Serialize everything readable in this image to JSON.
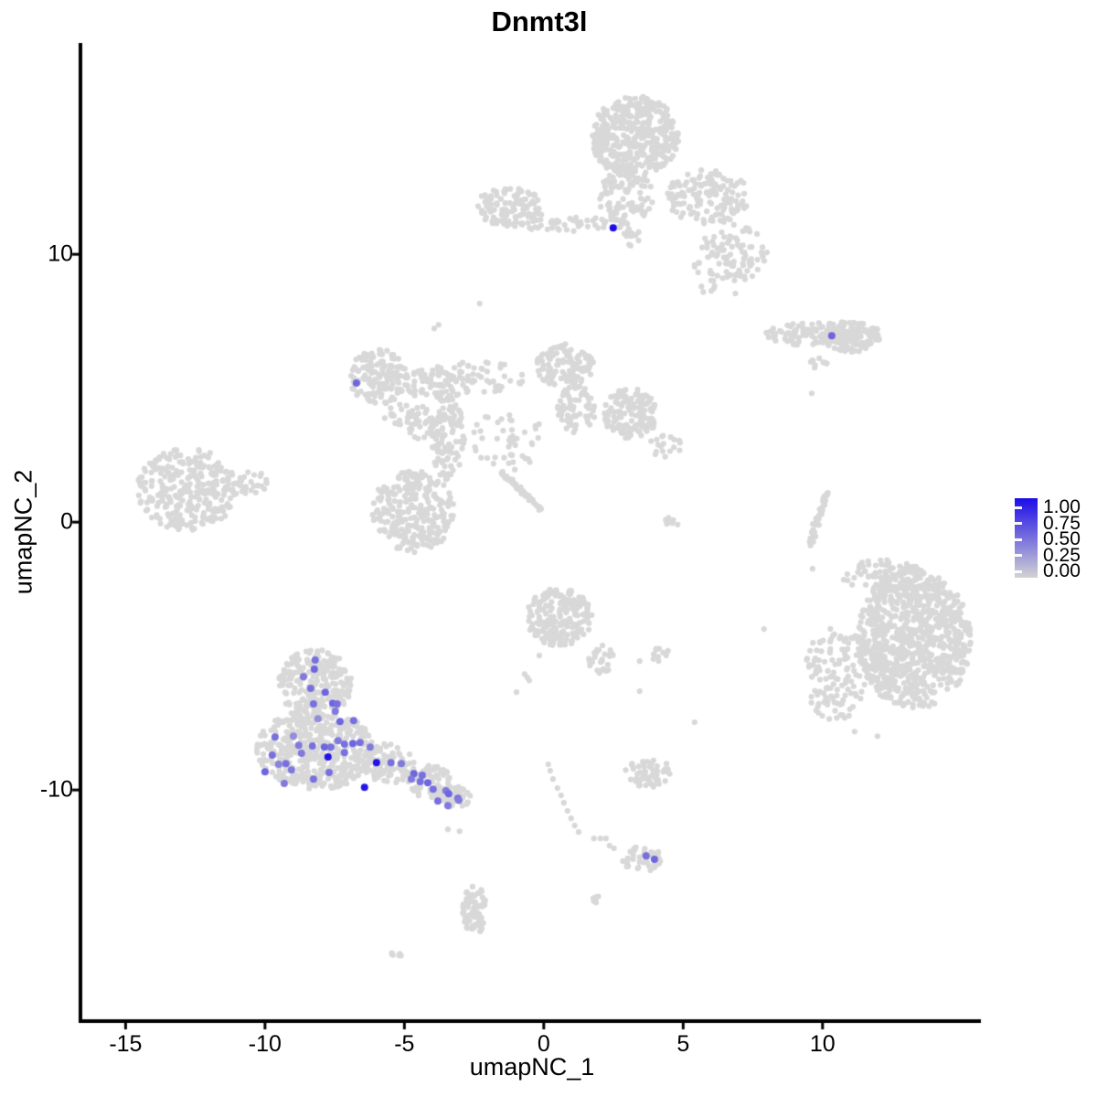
{
  "chart_data": {
    "type": "scatter",
    "title": "Dnmt3l",
    "xlabel": "umapNC_1",
    "ylabel": "umapNC_2",
    "xlim": [
      -16.62,
      15.68
    ],
    "ylim": [
      -18.63,
      17.89
    ],
    "x_ticks": [
      -15,
      -10,
      -5,
      0,
      5,
      10
    ],
    "x_tick_labels": [
      "-15",
      "-10",
      "-5",
      "0",
      "5",
      "10"
    ],
    "y_ticks": [
      10,
      0,
      -10
    ],
    "y_tick_labels": [
      "10",
      "0",
      "-10"
    ],
    "grid": false,
    "legend": {
      "position": "right",
      "breaks": [
        1.0,
        0.75,
        0.5,
        0.25,
        0.0
      ],
      "labels": [
        "1.00",
        "0.75",
        "0.50",
        "0.25",
        "0.00"
      ]
    },
    "colors": {
      "low": "#d3d3d3",
      "high": "#1c0ce8",
      "background_point": "#d8d8d8",
      "axis": "#000000"
    },
    "point_radius": {
      "background": 3.1,
      "expressing": 4.0
    },
    "clusters_format": [
      "center_x",
      "center_y",
      "radius_x",
      "radius_y",
      "n_points"
    ],
    "clusters": [
      [
        3.28,
        14.37,
        1.57,
        1.54,
        420
      ],
      [
        2.95,
        12.15,
        0.98,
        1.02,
        90
      ],
      [
        5.9,
        12.15,
        1.48,
        1.02,
        150
      ],
      [
        6.72,
        10.1,
        1.31,
        1.02,
        70
      ],
      [
        0.98,
        11.13,
        2.13,
        0.27,
        55
      ],
      [
        -1.25,
        11.74,
        1.25,
        0.75,
        110
      ],
      [
        3.11,
        10.55,
        0.49,
        0.41,
        12
      ],
      [
        6.39,
        9.25,
        1.15,
        0.85,
        35
      ],
      [
        9.67,
        7.03,
        1.7,
        0.44,
        110
      ],
      [
        11.05,
        6.93,
        1.05,
        0.58,
        110
      ],
      [
        9.84,
        5.84,
        0.39,
        0.31,
        10
      ],
      [
        -5.9,
        5.43,
        1.08,
        1.02,
        150
      ],
      [
        -3.77,
        5.15,
        1.31,
        0.61,
        70
      ],
      [
        -4.92,
        3.96,
        0.82,
        0.51,
        25
      ],
      [
        0.75,
        5.84,
        1.05,
        0.82,
        120
      ],
      [
        1.15,
        4.2,
        0.72,
        0.89,
        70
      ],
      [
        3.11,
        4.06,
        0.98,
        0.96,
        150
      ],
      [
        4.36,
        2.83,
        0.59,
        0.41,
        18
      ],
      [
        -3.44,
        3.11,
        0.59,
        1.54,
        110
      ],
      [
        -4.69,
        0.38,
        1.48,
        1.54,
        270
      ],
      [
        -1.31,
        3.11,
        1.31,
        1.19,
        45
      ],
      [
        -2.46,
        5.43,
        1.8,
        0.61,
        55
      ],
      [
        -4.43,
        3.72,
        0.49,
        0.75,
        25
      ],
      [
        4.49,
        -0.03,
        0.39,
        0.27,
        8
      ],
      [
        -12.79,
        1.23,
        1.8,
        1.54,
        300
      ],
      [
        -10.49,
        1.47,
        0.66,
        0.41,
        25
      ],
      [
        0.56,
        -3.55,
        1.18,
        1.09,
        200
      ],
      [
        2.07,
        -5.15,
        0.46,
        0.55,
        30
      ],
      [
        4.2,
        -4.95,
        0.39,
        0.27,
        10
      ],
      [
        13.28,
        -4.4,
        2.03,
        2.63,
        850
      ],
      [
        10.52,
        -5.67,
        1.18,
        1.77,
        130
      ],
      [
        12.13,
        -2.01,
        1.48,
        0.61,
        80
      ],
      [
        -8.2,
        -6.04,
        1.31,
        1.3,
        230
      ],
      [
        -8.2,
        -8.5,
        2.1,
        1.5,
        430
      ],
      [
        -5.57,
        -9.01,
        0.98,
        0.75,
        90
      ],
      [
        -4.1,
        -9.69,
        0.82,
        0.61,
        80
      ],
      [
        -3.18,
        -10.27,
        0.59,
        0.41,
        50
      ],
      [
        3.77,
        -9.35,
        0.85,
        0.55,
        60
      ],
      [
        3.54,
        -12.59,
        0.75,
        0.48,
        45
      ],
      [
        -2.49,
        -14.47,
        0.43,
        0.92,
        70
      ],
      [
        1.84,
        -13.96,
        0.2,
        0.27,
        7
      ],
      [
        -5.31,
        -16.14,
        0.23,
        0.17,
        6
      ]
    ],
    "streaks_format": [
      "x1",
      "y1",
      "x2",
      "y2",
      "n_points",
      "width_px"
    ],
    "streaks": [
      [
        -1.54,
        1.91,
        -0.1,
        0.48,
        45,
        4
      ],
      [
        10.16,
        1.13,
        9.54,
        -0.82,
        40,
        6
      ]
    ],
    "singles": [
      [
        9.61,
        4.81
      ],
      [
        9.64,
        -1.74
      ],
      [
        7.9,
        -3.99
      ],
      [
        5.41,
        -7.47
      ],
      [
        3.44,
        -5.19
      ],
      [
        -0.16,
        -4.98
      ],
      [
        -0.98,
        -6.35
      ],
      [
        -0.69,
        -5.67
      ],
      [
        -0.59,
        -5.8
      ],
      [
        -0.52,
        -5.91
      ],
      [
        -3.44,
        -11.47
      ],
      [
        -3.02,
        -11.54
      ],
      [
        0.23,
        -9.28
      ],
      [
        0.33,
        -9.59
      ],
      [
        0.49,
        -9.93
      ],
      [
        0.62,
        -10.2
      ],
      [
        0.72,
        -10.48
      ],
      [
        0.85,
        -10.78
      ],
      [
        0.98,
        -11.06
      ],
      [
        1.11,
        -11.33
      ],
      [
        1.25,
        -11.57
      ],
      [
        1.8,
        -11.81
      ],
      [
        2.03,
        -11.81
      ],
      [
        2.23,
        -11.81
      ],
      [
        0.16,
        -9.04
      ],
      [
        2.52,
        -12.18
      ],
      [
        2.36,
        -12.08
      ],
      [
        3.44,
        -6.31
      ],
      [
        -2.3,
        8.16
      ],
      [
        -3.77,
        7.37
      ],
      [
        -3.93,
        7.23
      ],
      [
        11.15,
        -7.82
      ],
      [
        11.97,
        -7.99
      ]
    ],
    "expressing_points_format": [
      "x",
      "y",
      "expression_value"
    ],
    "expressing_points": [
      [
        2.49,
        10.99,
        1.0
      ],
      [
        10.33,
        6.96,
        0.55
      ],
      [
        -6.72,
        5.19,
        0.55
      ],
      [
        3.67,
        -12.46,
        0.5
      ],
      [
        3.97,
        -12.59,
        0.55
      ],
      [
        -7.74,
        -8.77,
        0.97
      ],
      [
        -6.0,
        -8.98,
        0.97
      ],
      [
        -6.43,
        -9.9,
        0.95
      ],
      [
        -8.2,
        -5.15,
        0.5
      ],
      [
        -8.23,
        -5.49,
        0.55
      ],
      [
        -8.62,
        -5.77,
        0.45
      ],
      [
        -8.36,
        -6.21,
        0.5
      ],
      [
        -7.84,
        -6.35,
        0.55
      ],
      [
        -8.26,
        -6.79,
        0.5
      ],
      [
        -7.57,
        -6.76,
        0.55
      ],
      [
        -7.41,
        -6.79,
        0.5
      ],
      [
        -7.48,
        -7.06,
        0.45
      ],
      [
        -7.31,
        -7.44,
        0.55
      ],
      [
        -6.82,
        -7.41,
        0.5
      ],
      [
        -8.1,
        -7.34,
        0.35
      ],
      [
        -9.64,
        -8.02,
        0.5
      ],
      [
        -8.98,
        -7.99,
        0.35
      ],
      [
        -8.79,
        -8.33,
        0.45
      ],
      [
        -8.3,
        -8.36,
        0.5
      ],
      [
        -7.87,
        -8.4,
        0.55
      ],
      [
        -7.64,
        -8.4,
        0.5
      ],
      [
        -7.38,
        -8.16,
        0.45
      ],
      [
        -7.15,
        -8.29,
        0.5
      ],
      [
        -6.85,
        -8.26,
        0.55
      ],
      [
        -6.59,
        -8.23,
        0.5
      ],
      [
        -6.23,
        -8.4,
        0.45
      ],
      [
        -7.15,
        -8.6,
        0.5
      ],
      [
        -9.74,
        -8.7,
        0.5
      ],
      [
        -8.69,
        -8.63,
        0.45
      ],
      [
        -9.51,
        -9.04,
        0.4
      ],
      [
        -9.25,
        -9.01,
        0.5
      ],
      [
        -10.0,
        -9.32,
        0.55
      ],
      [
        -9.05,
        -9.25,
        0.45
      ],
      [
        -7.7,
        -9.35,
        0.5
      ],
      [
        -9.31,
        -9.76,
        0.45
      ],
      [
        -8.26,
        -9.59,
        0.5
      ],
      [
        -5.48,
        -8.98,
        0.5
      ],
      [
        -5.11,
        -9.01,
        0.45
      ],
      [
        -4.66,
        -9.39,
        0.55
      ],
      [
        -4.36,
        -9.45,
        0.5
      ],
      [
        -4.75,
        -9.59,
        0.45
      ],
      [
        -4.43,
        -9.69,
        0.5
      ],
      [
        -4.16,
        -9.73,
        0.55
      ],
      [
        -3.97,
        -9.97,
        0.5
      ],
      [
        -3.51,
        -10.03,
        0.45
      ],
      [
        -3.41,
        -10.14,
        0.55
      ],
      [
        -3.08,
        -10.31,
        0.5
      ],
      [
        -3.44,
        -10.58,
        0.45
      ],
      [
        -3.8,
        -10.41,
        0.5
      ],
      [
        -3.05,
        -10.38,
        0.45
      ]
    ]
  }
}
